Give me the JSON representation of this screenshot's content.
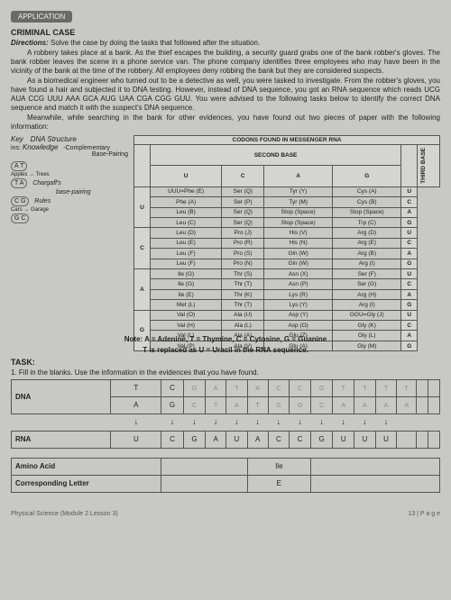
{
  "header": {
    "tag": "APPLICATION",
    "title": "CRIMINAL CASE",
    "directions_label": "Directions:",
    "directions": "Solve the case by doing the tasks that followed after the situation."
  },
  "paragraphs": {
    "p1": "A robbery takes place at a bank. As the thief escapes the building, a security guard grabs one of the bank robber's gloves. The bank robber leaves the scene in a phone service van. The phone company identifies three employees who may have been in the vicinity of the bank at the time of the robbery. All employees deny robbing the bank but they are considered suspects.",
    "p2": "As a biomedical engineer who turned out to be a detective as well, you were tasked to investigate. From the robber's gloves, you have found a hair and subjected it to DNA testing. However, instead of DNA sequence, you got an RNA sequence which reads UCG AUA CCG UUU AAA GCA AUG UAA CGA CGG GUU. You were advised to the following tasks below to identify the correct DNA sequence and match it with the suspect's DNA sequence.",
    "p3": "Meanwhile, while searching in the bank for other evidences, you have found out two pieces of paper with the following information:"
  },
  "key": {
    "line1": "Key",
    "line2": "Knowledge",
    "struct1": "DNA Structure",
    "struct2": "-Complementary",
    "struct3": "Base-Pairing",
    "pair1": "A  T",
    "sub1": "Apples → Trees",
    "pair2": "T  A",
    "chargaff": "Chargaff's",
    "chargaff2": "base-pairing",
    "chargaff3": "Rules",
    "pair3": "C  G",
    "sub3": "Cars → Garage",
    "pair4": "G  C"
  },
  "codon_table": {
    "title": "CODONS FOUND IN MESSENGER RNA",
    "second_base": "SECOND BASE",
    "first_base": "FIRST BASE",
    "third_base": "THIRD BASE",
    "cols": [
      "U",
      "C",
      "A",
      "G"
    ],
    "rows_header": [
      "U",
      "C",
      "A",
      "G"
    ],
    "cells": [
      [
        [
          "UUU=Phe (E)",
          "Phe (A)",
          "Leu (B)",
          "Leu (C)"
        ],
        [
          "Ser (Q)",
          "Ser (P)",
          "Ser (Q)",
          "Ser (Q)"
        ],
        [
          "Tyr (Y)",
          "Tyr (M)",
          "Stop (Space)",
          "Stop (Space)"
        ],
        [
          "Cys (A)",
          "Cys (B)",
          "Stop (Space)",
          "Trp (C)"
        ],
        [
          "U",
          "C",
          "A",
          "G"
        ]
      ],
      [
        [
          "Leu (D)",
          "Leu (E)",
          "Leu (F)",
          "Leu (F)"
        ],
        [
          "Pro (J)",
          "Pro (R)",
          "Pro (S)",
          "Pro (N)"
        ],
        [
          "His (V)",
          "His (N)",
          "Gln (W)",
          "Gln (W)"
        ],
        [
          "Arg (D)",
          "Arg (E)",
          "Arg (B)",
          "Arg (I)"
        ],
        [
          "U",
          "C",
          "A",
          "G"
        ]
      ],
      [
        [
          "Ile (G)",
          "Ile (G)",
          "Ile (E)",
          "Met (L)"
        ],
        [
          "Thr (S)",
          "Thr (T)",
          "Thr (K)",
          "Thr (T)"
        ],
        [
          "Asn (X)",
          "Asn (P)",
          "Lys (R)",
          "Lys (Y)"
        ],
        [
          "Ser (F)",
          "Ser (G)",
          "Arg (H)",
          "Arg (I)"
        ],
        [
          "U",
          "C",
          "A",
          "G"
        ]
      ],
      [
        [
          "Val (O)",
          "Val (H)",
          "Val (L)",
          "Val (P)"
        ],
        [
          "Ala (U)",
          "Ala (L)",
          "Ala (A)",
          "Ala (V)"
        ],
        [
          "Asp (Y)",
          "Asp (O)",
          "Glu (Z)",
          "Glu (A)"
        ],
        [
          "GGU=Gly (J)",
          "Gly (K)",
          "Gly (L)",
          "Gly (M)"
        ],
        [
          "U",
          "C",
          "A",
          "G"
        ]
      ]
    ]
  },
  "note": {
    "l1": "Note: A = Adenine, T = Thymine, C = Cytosine, G = Guanine",
    "l2": "T is replaced as U = Uracil in the RNA sequence."
  },
  "task": {
    "label": "TASK:",
    "t1": "1. Fill in the blanks. Use the information in the evidences that you have found."
  },
  "fill": {
    "dna_label": "DNA",
    "rna_label": "RNA",
    "amino_label": "Amino Acid",
    "corr_label": "Corresponding Letter",
    "dna_top": [
      "T",
      "C",
      "",
      "",
      "",
      "",
      "",
      "",
      "",
      "",
      "",
      "",
      "",
      "",
      ""
    ],
    "dna_faint_top": [
      "",
      "",
      "G",
      "A",
      "T",
      "A",
      "C",
      "C",
      "G",
      "T",
      "T",
      "T",
      "T",
      "",
      ""
    ],
    "dna_bot": [
      "A",
      "G",
      "",
      "",
      "",
      "",
      "",
      "",
      "",
      "",
      "",
      "",
      "",
      "",
      ""
    ],
    "dna_faint_bot": [
      "",
      "",
      "C",
      "T",
      "A",
      "T",
      "G",
      "G",
      "C",
      "A",
      "A",
      "A",
      "A",
      "",
      ""
    ],
    "rna": [
      "U",
      "C",
      "G",
      "A",
      "U",
      "A",
      "C",
      "C",
      "G",
      "U",
      "U",
      "U",
      "",
      "",
      ""
    ],
    "amino_val": "Ile",
    "corr_val": "E"
  },
  "footer": {
    "left": "Physical Science (Module 2 Lesson 3)",
    "right": "13 | P a g e"
  }
}
